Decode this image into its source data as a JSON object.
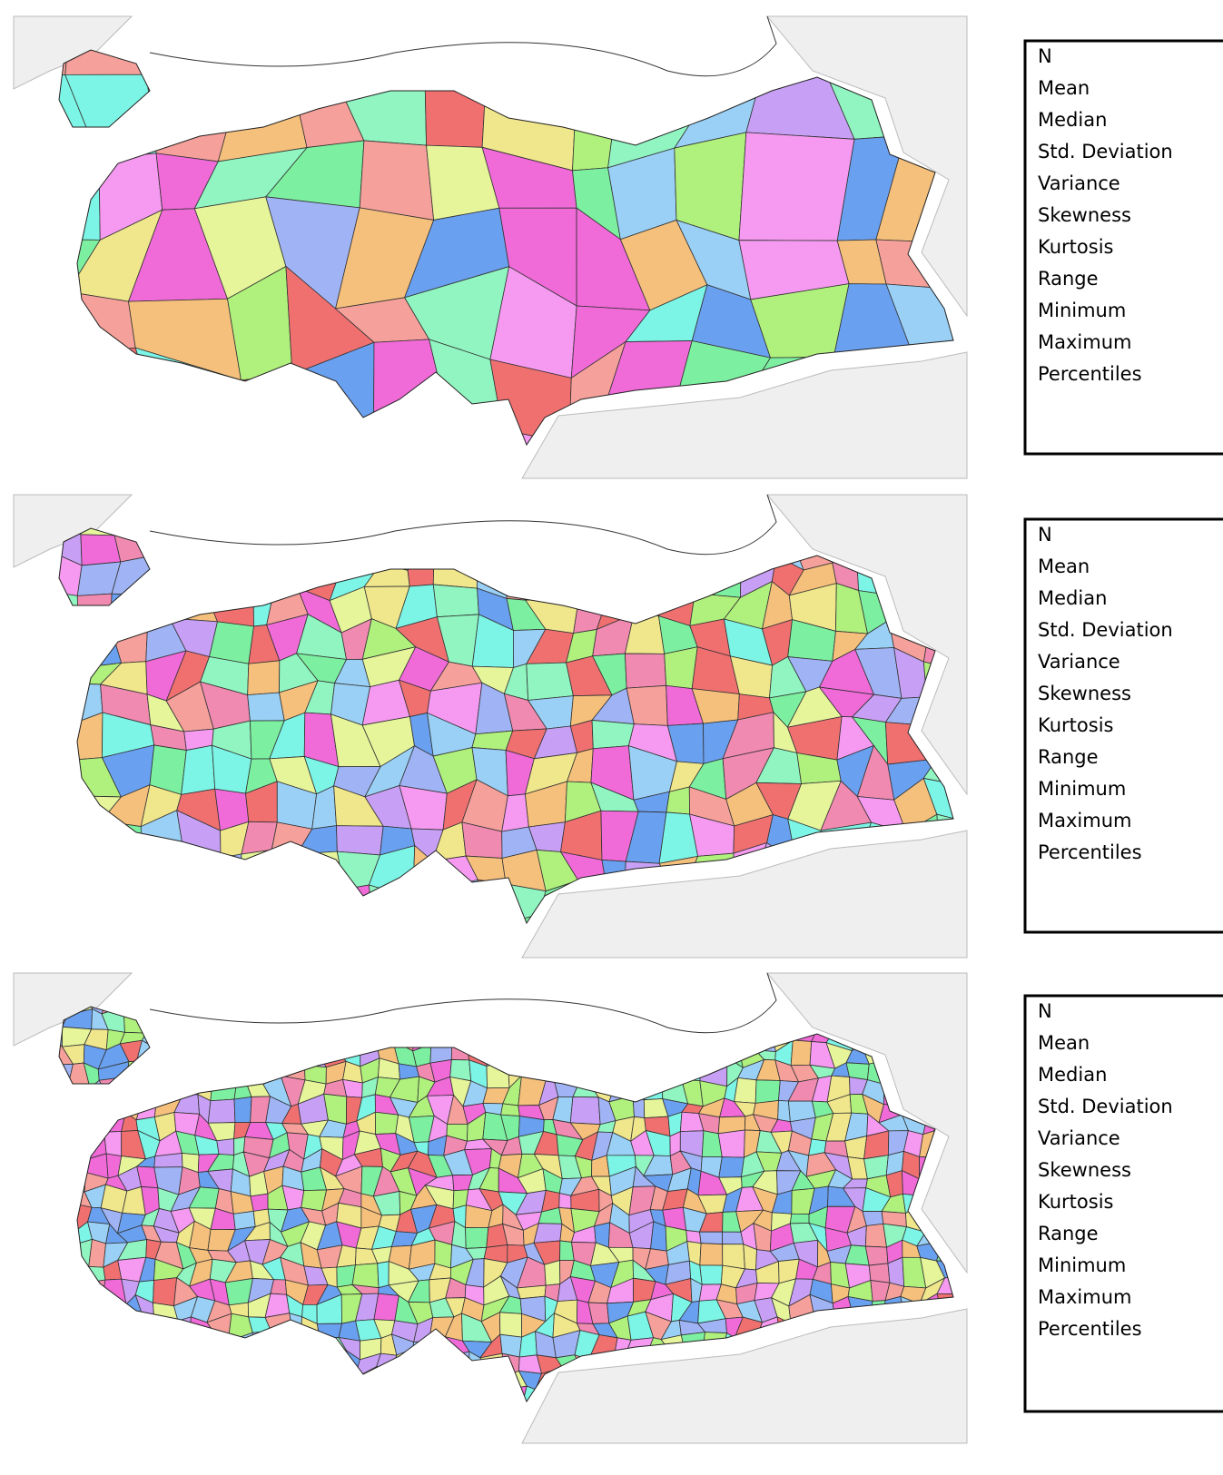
{
  "panels": [
    {
      "stats": [
        "N",
        "Mean",
        "Median",
        "Std. Deviation",
        "Variance",
        "Skewness",
        "Kurtosis",
        "Range",
        "Minimum",
        "Maximum",
        "Percentiles"
      ]
    },
    {
      "stats": [
        "N",
        "Mean",
        "Median",
        "Std. Deviation",
        "Variance",
        "Skewness",
        "Kurtosis",
        "Range",
        "Minimum",
        "Maximum",
        "Percentiles"
      ]
    },
    {
      "stats": [
        "N",
        "Mean",
        "Median",
        "Std. Deviation",
        "Variance",
        "Skewness",
        "Kurtosis",
        "Range",
        "Minimum",
        "Maximum",
        "Percentiles"
      ]
    }
  ]
}
